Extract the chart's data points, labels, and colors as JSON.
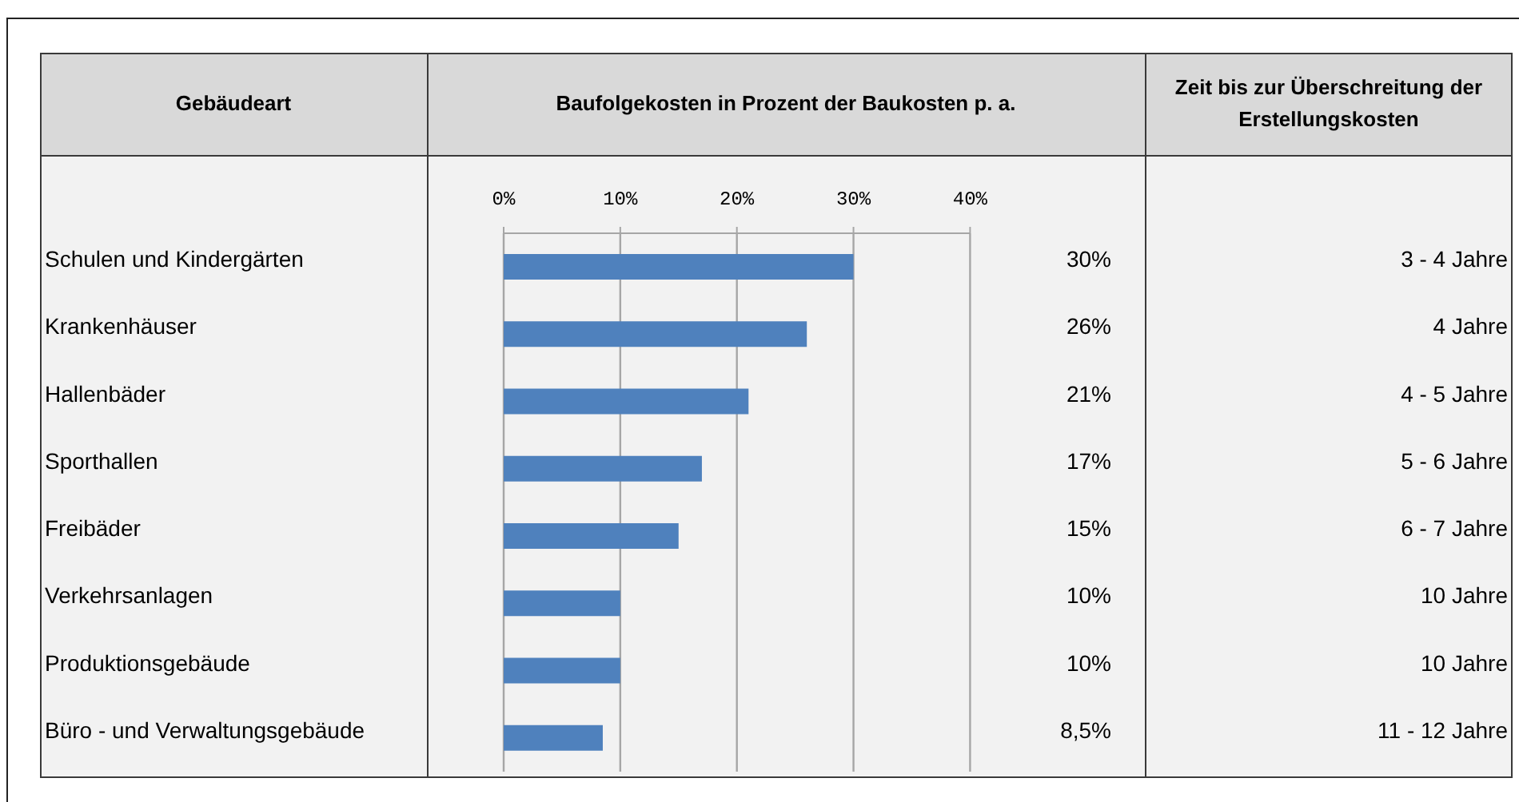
{
  "chart_data": {
    "type": "bar",
    "orientation": "horizontal",
    "ylabel": "Gebäudeart",
    "xlabel": "Baufolgekosten in Prozent der Baukosten p. a.",
    "categories": [
      "Schulen und Kindergärten",
      "Krankenhäuser",
      "Hallenbäder",
      "Sporthallen",
      "Freibäder",
      "Verkehrsanlagen",
      "Produktionsgebäude",
      "Büro - und Verwaltungsgebäude"
    ],
    "values": [
      30,
      26,
      21,
      17,
      15,
      10,
      10,
      8.5
    ],
    "value_labels": [
      "30%",
      "26%",
      "21%",
      "17%",
      "15%",
      "10%",
      "10%",
      "8,5%"
    ],
    "color": "#4f81bd",
    "xlim": [
      0,
      40
    ],
    "xticks": [
      {
        "value": 0,
        "label": "0%"
      },
      {
        "value": 10,
        "label": "10%"
      },
      {
        "value": 20,
        "label": "20%"
      },
      {
        "value": 30,
        "label": "30%"
      },
      {
        "value": 40,
        "label": "40%"
      }
    ],
    "grid": "x",
    "annotations": [
      "Zeit bis zur Überschreitung der Erstellungskosten",
      "3 - 4 Jahre",
      "4 Jahre",
      "4 - 5 Jahre",
      "5 - 6 Jahre",
      "6 - 7 Jahre",
      "10 Jahre",
      "10 Jahre",
      "11 - 12 Jahre"
    ]
  }
}
